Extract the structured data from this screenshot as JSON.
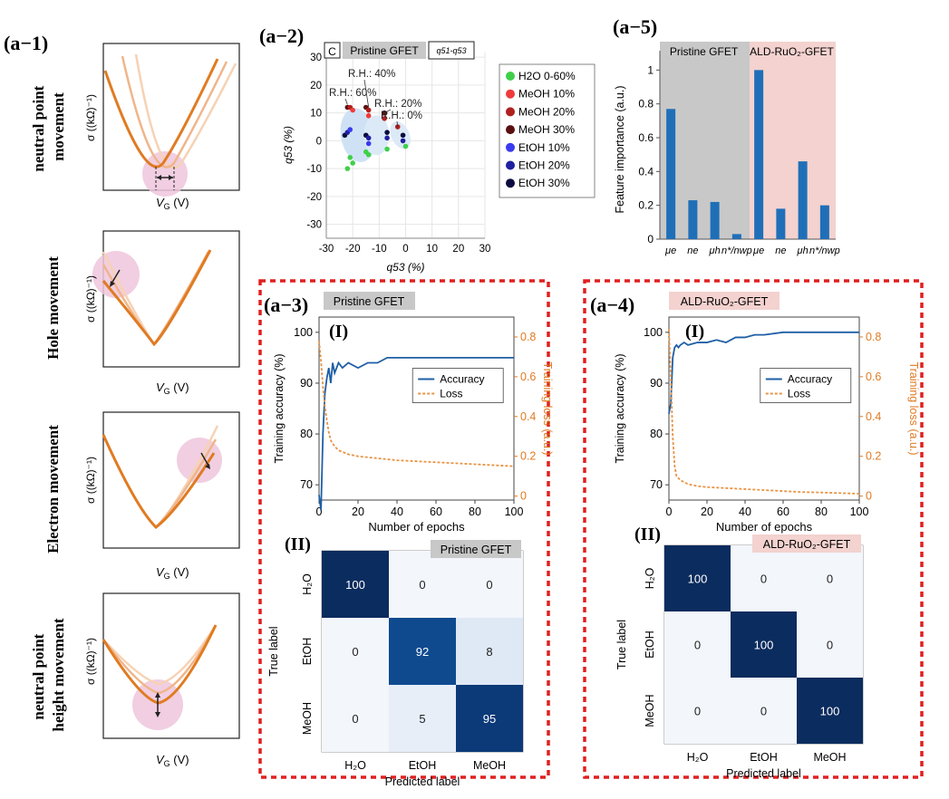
{
  "panel_labels": {
    "a1": "(a−1)",
    "a2": "(a−2)",
    "a3": "(a−3)",
    "a4": "(a−4)",
    "a5": "(a−5)",
    "I": "(I)",
    "II": "(II)"
  },
  "colors": {
    "orange": "#e07b22",
    "orange_light": "#f0b58a",
    "orange_pale": "#f6d2b4",
    "pink": "#efc6dc",
    "blue": "#1f5fa6",
    "navy": "#0a2a5e",
    "red_dash": "#e02020",
    "gray_band": "#c8c8c8",
    "pink_band": "#f3d2cf"
  },
  "side_panels": [
    {
      "title_lines": [
        "neutral point",
        "movement"
      ],
      "ylabel": "σ ((kΩ)⁻¹)",
      "xlabel": "V",
      "xsub": "G",
      "xunit": " (V)"
    },
    {
      "title_lines": [
        "Hole movement"
      ],
      "ylabel": "σ ((kΩ)⁻¹)",
      "xlabel": "V",
      "xsub": "G",
      "xunit": " (V)"
    },
    {
      "title_lines": [
        "Electron movement"
      ],
      "ylabel": "σ ((kΩ)⁻¹)",
      "xlabel": "V",
      "xsub": "G",
      "xunit": " (V)"
    },
    {
      "title_lines": [
        "neutral point",
        "height movement"
      ],
      "ylabel": "σ ((kΩ)⁻¹)",
      "xlabel": "V",
      "xsub": "G",
      "xunit": " (V)"
    }
  ],
  "chart_data": [
    {
      "id": "a2",
      "type": "scatter",
      "badge": "C",
      "title": "Pristine GFET",
      "tag": "q51-q53",
      "xlabel": "q53 (%)",
      "ylabel": "q53 (%)",
      "xlim": [
        -30,
        30
      ],
      "ylim": [
        -35,
        32
      ],
      "xticks": [
        -30,
        -20,
        -10,
        0,
        10,
        20,
        30
      ],
      "yticks": [
        -30,
        -20,
        -10,
        0,
        10,
        20,
        30
      ],
      "annotations": [
        "R.H.: 60%",
        "R.H.: 40%",
        "R.H.: 20%",
        "R.H.: 0%"
      ],
      "legend": [
        {
          "name": "H2O 0-60%",
          "color": "#3fd04a"
        },
        {
          "name": "MeOH 10%",
          "color": "#ef3b3b"
        },
        {
          "name": "MeOH 20%",
          "color": "#b02020"
        },
        {
          "name": "MeOH 30%",
          "color": "#5a1010"
        },
        {
          "name": "EtOH 10%",
          "color": "#3a3aef"
        },
        {
          "name": "EtOH 20%",
          "color": "#2020a0"
        },
        {
          "name": "EtOH 30%",
          "color": "#0b0b40"
        }
      ],
      "clusters": [
        {
          "label": "R.H.: 60%",
          "points": [
            [
              -22,
              12,
              "#5a1010"
            ],
            [
              -21,
              12,
              "#b02020"
            ],
            [
              -20,
              11,
              "#ef3b3b"
            ],
            [
              -23,
              2,
              "#0b0b40"
            ],
            [
              -22,
              3,
              "#2020a0"
            ],
            [
              -21,
              4,
              "#3a3aef"
            ],
            [
              -21,
              -6,
              "#3fd04a"
            ],
            [
              -20,
              -8,
              "#3fd04a"
            ],
            [
              -22,
              -10,
              "#3fd04a"
            ]
          ]
        },
        {
          "label": "R.H.: 40%",
          "points": [
            [
              -15,
              12,
              "#5a1010"
            ],
            [
              -14,
              11,
              "#b02020"
            ],
            [
              -14,
              9,
              "#ef3b3b"
            ],
            [
              -15,
              2,
              "#0b0b40"
            ],
            [
              -14,
              1,
              "#2020a0"
            ],
            [
              -14,
              -1,
              "#3a3aef"
            ],
            [
              -14,
              -5,
              "#3fd04a"
            ],
            [
              -15,
              -4,
              "#3fd04a"
            ]
          ]
        },
        {
          "label": "R.H.: 20%",
          "points": [
            [
              -8,
              10,
              "#5a1010"
            ],
            [
              -8,
              8,
              "#b02020"
            ],
            [
              -7,
              3,
              "#0b0b40"
            ],
            [
              -7,
              1,
              "#2020a0"
            ],
            [
              -7,
              -3,
              "#3fd04a"
            ]
          ]
        },
        {
          "label": "R.H.: 0%",
          "points": [
            [
              -3,
              5,
              "#b02020"
            ],
            [
              -1,
              2,
              "#0b0b40"
            ],
            [
              -1,
              0,
              "#2020a0"
            ],
            [
              0,
              -2,
              "#3fd04a"
            ]
          ]
        }
      ]
    },
    {
      "id": "a5",
      "type": "bar",
      "title": "",
      "ylabel": "Feature importance (a.u.)",
      "ylim": [
        0,
        1.05
      ],
      "yticks": [
        0,
        0.2,
        0.4,
        0.6,
        0.8,
        1
      ],
      "group_labels": [
        "Pristine GFET",
        "ALD-RuO₂-GFET"
      ],
      "categories": [
        "μe",
        "ne",
        "μh",
        "n*/nwp",
        "μe",
        "ne",
        "μh",
        "n*/nwp"
      ],
      "values": [
        0.77,
        0.23,
        0.22,
        0.03,
        1.0,
        0.18,
        0.46,
        0.2
      ]
    },
    {
      "id": "a3",
      "type": "line",
      "tag": "Pristine GFET",
      "xlabel": "Number of epochs",
      "ylabel": "Training accuracy (%)",
      "y2label": "Training loss (a.u.)",
      "xlim": [
        0,
        100
      ],
      "ylim": [
        67,
        103
      ],
      "y2lim": [
        -0.02,
        0.9
      ],
      "xticks": [
        0,
        20,
        40,
        60,
        80,
        100
      ],
      "yticks": [
        70,
        80,
        90,
        100
      ],
      "y2ticks": [
        0,
        0.2,
        0.4,
        0.6,
        0.8
      ],
      "series": [
        {
          "name": "Accuracy",
          "x": [
            0,
            1,
            2,
            3,
            4,
            5,
            6,
            7,
            8,
            10,
            12,
            15,
            20,
            25,
            30,
            35,
            40,
            60,
            80,
            100
          ],
          "values": [
            68,
            65,
            80,
            88,
            91,
            93,
            90,
            94,
            92,
            94,
            93,
            94,
            93,
            94,
            94,
            95,
            95,
            95,
            95,
            95
          ]
        },
        {
          "name": "Loss",
          "x": [
            0,
            1,
            2,
            3,
            4,
            5,
            6,
            8,
            10,
            15,
            20,
            30,
            40,
            50,
            60,
            70,
            80,
            90,
            100
          ],
          "values": [
            0.78,
            0.68,
            0.55,
            0.45,
            0.38,
            0.32,
            0.28,
            0.25,
            0.23,
            0.21,
            0.2,
            0.19,
            0.18,
            0.175,
            0.17,
            0.165,
            0.16,
            0.155,
            0.15
          ]
        }
      ]
    },
    {
      "id": "a4",
      "type": "line",
      "tag": "ALD-RuO₂-GFET",
      "xlabel": "Number of epochs",
      "ylabel": "Training accuracy (%)",
      "y2label": "Training loss (a.u.)",
      "xlim": [
        0,
        100
      ],
      "ylim": [
        67,
        103
      ],
      "y2lim": [
        -0.02,
        0.9
      ],
      "xticks": [
        0,
        20,
        40,
        60,
        80,
        100
      ],
      "yticks": [
        70,
        80,
        90,
        100
      ],
      "y2ticks": [
        0,
        0.2,
        0.4,
        0.6,
        0.8
      ],
      "series": [
        {
          "name": "Accuracy",
          "x": [
            0,
            1,
            2,
            3,
            4,
            5,
            6,
            8,
            10,
            15,
            20,
            25,
            30,
            35,
            40,
            45,
            50,
            60,
            70,
            80,
            90,
            100
          ],
          "values": [
            84,
            86,
            95,
            97,
            97.5,
            97,
            97.5,
            98,
            97.5,
            98,
            98,
            98.5,
            98,
            99,
            99,
            99.5,
            99.5,
            100,
            100,
            100,
            100,
            100
          ]
        },
        {
          "name": "Loss",
          "x": [
            0,
            1,
            2,
            3,
            4,
            5,
            6,
            8,
            10,
            15,
            20,
            30,
            40,
            50,
            60,
            70,
            80,
            90,
            100
          ],
          "values": [
            0.84,
            0.6,
            0.3,
            0.15,
            0.1,
            0.09,
            0.08,
            0.07,
            0.06,
            0.05,
            0.045,
            0.04,
            0.035,
            0.03,
            0.025,
            0.02,
            0.018,
            0.015,
            0.012
          ]
        }
      ]
    },
    {
      "id": "a3-cm",
      "type": "heatmap",
      "tag": "Pristine GFET",
      "xlabel": "Predicted label",
      "ylabel": "True label",
      "row_labels": [
        "H₂O",
        "EtOH",
        "MeOH"
      ],
      "col_labels": [
        "H₂O",
        "EtOH",
        "MeOH"
      ],
      "values": [
        [
          100,
          0,
          0
        ],
        [
          0,
          92,
          8
        ],
        [
          0,
          5,
          95
        ]
      ]
    },
    {
      "id": "a4-cm",
      "type": "heatmap",
      "tag": "ALD-RuO₂-GFET",
      "xlabel": "Predicted label",
      "ylabel": "True label",
      "row_labels": [
        "H₂O",
        "EtOH",
        "MeOH"
      ],
      "col_labels": [
        "H₂O",
        "EtOH",
        "MeOH"
      ],
      "values": [
        [
          100,
          0,
          0
        ],
        [
          0,
          100,
          0
        ],
        [
          0,
          0,
          100
        ]
      ]
    }
  ]
}
